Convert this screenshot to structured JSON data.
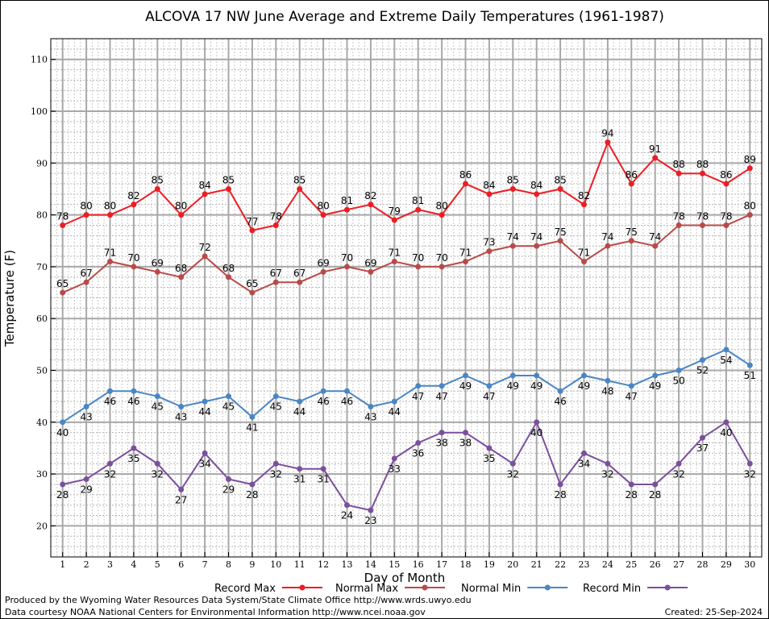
{
  "chart_data": {
    "type": "line",
    "title": "ALCOVA 17 NW June Average and Extreme Daily Temperatures (1961-1987)",
    "xlabel": "Day of Month",
    "ylabel": "Temperature (F)",
    "x": [
      1,
      2,
      3,
      4,
      5,
      6,
      7,
      8,
      9,
      10,
      11,
      12,
      13,
      14,
      15,
      16,
      17,
      18,
      19,
      20,
      21,
      22,
      23,
      24,
      25,
      26,
      27,
      28,
      29,
      30
    ],
    "xlim": [
      0.5,
      30.5
    ],
    "ylim": [
      14,
      114
    ],
    "yticks": [
      20,
      30,
      40,
      50,
      60,
      70,
      80,
      90,
      100,
      110
    ],
    "grid": true,
    "legend_position": "bottom",
    "series": [
      {
        "name": "Record Max",
        "color": "#ee1c24",
        "label_pos": "above",
        "values": [
          78,
          80,
          80,
          82,
          85,
          80,
          84,
          85,
          77,
          78,
          85,
          80,
          81,
          82,
          79,
          81,
          80,
          86,
          84,
          85,
          84,
          85,
          82,
          94,
          86,
          91,
          88,
          88,
          86,
          89
        ]
      },
      {
        "name": "Normal Max",
        "color": "#b94a48",
        "label_pos": "above",
        "values": [
          65,
          67,
          71,
          70,
          69,
          68,
          72,
          68,
          65,
          67,
          67,
          69,
          70,
          69,
          71,
          70,
          70,
          71,
          73,
          74,
          74,
          75,
          71,
          74,
          75,
          74,
          78,
          78,
          78,
          80
        ]
      },
      {
        "name": "Normal Min",
        "color": "#4a86c5",
        "label_pos": "below",
        "values": [
          40,
          43,
          46,
          46,
          45,
          43,
          44,
          45,
          41,
          45,
          44,
          46,
          46,
          43,
          44,
          47,
          47,
          49,
          47,
          49,
          49,
          46,
          49,
          48,
          47,
          49,
          50,
          52,
          54,
          51
        ]
      },
      {
        "name": "Record Min",
        "color": "#7b4f9e",
        "label_pos": "below",
        "values": [
          28,
          29,
          32,
          35,
          32,
          27,
          34,
          29,
          28,
          32,
          31,
          31,
          24,
          23,
          33,
          36,
          38,
          38,
          35,
          32,
          40,
          28,
          34,
          32,
          28,
          28,
          32,
          37,
          40,
          32
        ]
      }
    ]
  },
  "footer": {
    "left1": "Produced by the Wyoming Water Resources Data System/State Climate Office http://www.wrds.uwyo.edu",
    "left2": "Data courtesy NOAA National Centers for Environmental Information http://www.ncei.noaa.gov",
    "right": "Created:  25-Sep-2024"
  }
}
